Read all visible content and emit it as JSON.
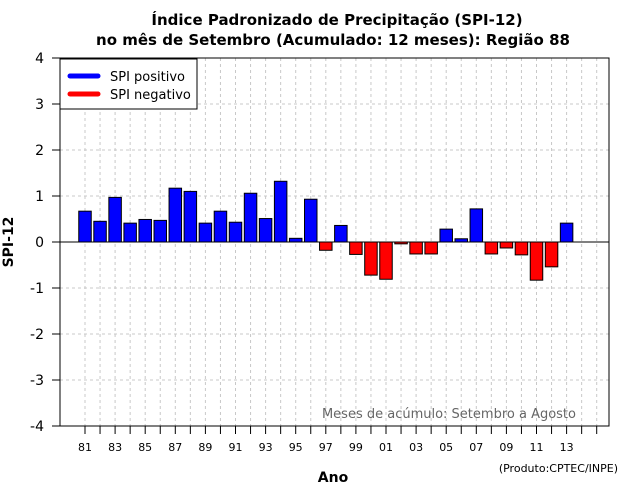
{
  "chart_data": {
    "type": "bar",
    "title": "Índice Padronizado de Precipitação (SPI-12)",
    "subtitle": "no mês de Setembro (Acumulado: 12 meses): Região 88",
    "xlabel": "Ano",
    "ylabel": "SPI-12",
    "ylim": [
      -4,
      4
    ],
    "yticks": [
      "4",
      "3",
      "2",
      "1",
      "0",
      "-1",
      "-2",
      "-3",
      "-4"
    ],
    "ytick_values": [
      4,
      3,
      2,
      1,
      0,
      -1,
      -2,
      -3,
      -4
    ],
    "xtick_labels": [
      "81",
      "83",
      "85",
      "87",
      "89",
      "91",
      "93",
      "95",
      "97",
      "99",
      "01",
      "03",
      "05",
      "07",
      "09",
      "11",
      "13"
    ],
    "categories": [
      "81",
      "82",
      "83",
      "84",
      "85",
      "86",
      "87",
      "88",
      "89",
      "90",
      "91",
      "92",
      "93",
      "94",
      "95",
      "96",
      "97",
      "98",
      "99",
      "00",
      "01",
      "02",
      "03",
      "04",
      "05",
      "06",
      "07",
      "08",
      "09",
      "10",
      "11",
      "12",
      "13"
    ],
    "values": [
      0.67,
      0.45,
      0.97,
      0.41,
      0.49,
      0.47,
      1.17,
      1.1,
      0.41,
      0.67,
      0.43,
      1.06,
      0.51,
      1.32,
      0.08,
      0.93,
      -0.18,
      0.36,
      -0.27,
      -0.72,
      -0.81,
      -0.04,
      -0.26,
      -0.26,
      0.28,
      0.07,
      0.72,
      -0.26,
      -0.13,
      -0.28,
      -0.83,
      -0.54,
      0.41
    ],
    "grid": true,
    "legend": {
      "placement": "top-left",
      "entries": [
        {
          "label": "SPI positivo",
          "color": "#0000ff"
        },
        {
          "label": "SPI negativo",
          "color": "#ff0000"
        }
      ]
    },
    "annotation": "Meses de acúmulo: Setembro a Agosto",
    "credit": "(Produto:CPTEC/INPE)",
    "colors": {
      "positive": "#0000ff",
      "negative": "#ff0000",
      "grid": "#c8c8c8",
      "annotation": "#666666"
    }
  }
}
